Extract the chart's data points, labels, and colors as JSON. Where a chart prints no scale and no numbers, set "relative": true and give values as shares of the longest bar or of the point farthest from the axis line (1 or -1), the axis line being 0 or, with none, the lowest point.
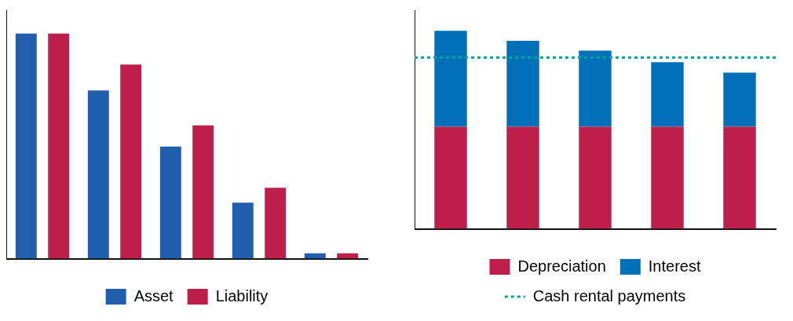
{
  "chart_data": [
    {
      "type": "bar",
      "relative": true,
      "categories": [
        null,
        null,
        null,
        null,
        null
      ],
      "grid": false,
      "legend": "bottom",
      "series": [
        {
          "name": "Asset",
          "color": "#1f5fae",
          "values": [
            1,
            0.747,
            0.498,
            0.249,
            0.024
          ]
        },
        {
          "name": "Liability",
          "color": "#be1e4a",
          "values": [
            1,
            0.862,
            0.592,
            0.315,
            0.024
          ]
        }
      ]
    },
    {
      "type": "bar",
      "relative": true,
      "stacked": true,
      "categories": [
        null,
        null,
        null,
        null,
        null
      ],
      "grid": false,
      "legend": "bottom",
      "series": [
        {
          "name": "Depreciation",
          "color": "#be1e4a",
          "values": [
            0.516,
            0.516,
            0.516,
            0.516,
            0.516
          ]
        },
        {
          "name": "Interest",
          "color": "#0070b8",
          "values": [
            0.484,
            0.433,
            0.384,
            0.325,
            0.273
          ]
        }
      ],
      "ref_lines": [
        {
          "axis": "y",
          "value": 0.865,
          "label": "Cash rental payments",
          "color": "#00a3a0",
          "line_style": "dotted"
        }
      ]
    }
  ]
}
